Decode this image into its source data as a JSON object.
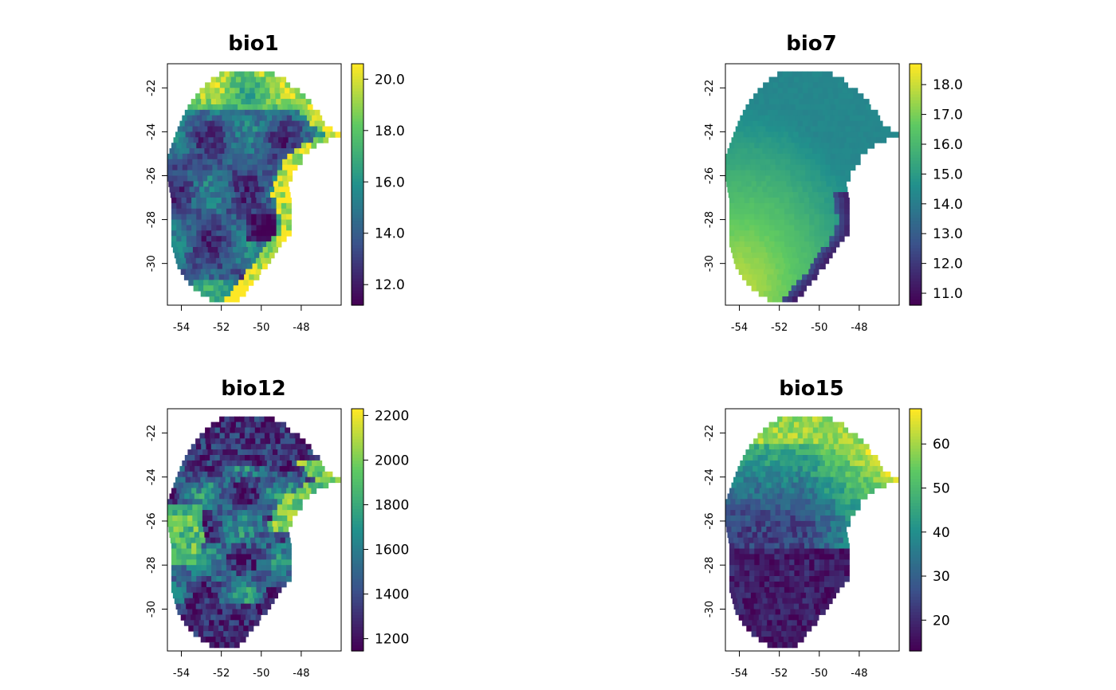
{
  "chart_data": [
    {
      "type": "heatmap",
      "title": "bio1",
      "x_ticks": [
        -54,
        -52,
        -50,
        -48
      ],
      "y_ticks": [
        -22,
        -24,
        -26,
        -28,
        -30
      ],
      "xlim": [
        -54.7,
        -46.0
      ],
      "ylim": [
        -31.9,
        -20.9
      ],
      "legend": {
        "min": 11.2,
        "max": 20.6,
        "ticks": [
          12.0,
          14.0,
          16.0,
          18.0,
          20.0
        ],
        "labels": [
          "12.0",
          "14.0",
          "16.0",
          "18.0",
          "20.0"
        ]
      },
      "colormap": [
        "#440154",
        "#3b528b",
        "#21918c",
        "#5ec962",
        "#fde725"
      ],
      "pattern": "temperature"
    },
    {
      "type": "heatmap",
      "title": "bio7",
      "x_ticks": [
        -54,
        -52,
        -50,
        -48
      ],
      "y_ticks": [
        -22,
        -24,
        -26,
        -28,
        -30
      ],
      "xlim": [
        -54.7,
        -46.0
      ],
      "ylim": [
        -31.9,
        -20.9
      ],
      "legend": {
        "min": 10.6,
        "max": 18.7,
        "ticks": [
          11.0,
          12.0,
          13.0,
          14.0,
          15.0,
          16.0,
          17.0,
          18.0
        ],
        "labels": [
          "11.0",
          "12.0",
          "13.0",
          "14.0",
          "15.0",
          "16.0",
          "17.0",
          "18.0"
        ]
      },
      "colormap": [
        "#440154",
        "#3b528b",
        "#21918c",
        "#5ec962",
        "#fde725"
      ],
      "pattern": "range"
    },
    {
      "type": "heatmap",
      "title": "bio12",
      "x_ticks": [
        -54,
        -52,
        -50,
        -48
      ],
      "y_ticks": [
        -22,
        -24,
        -26,
        -28,
        -30
      ],
      "xlim": [
        -54.7,
        -46.0
      ],
      "ylim": [
        -31.9,
        -20.9
      ],
      "legend": {
        "min": 1145,
        "max": 2230,
        "ticks": [
          1200,
          1400,
          1600,
          1800,
          2000,
          2200
        ],
        "labels": [
          "1200",
          "1400",
          "1600",
          "1800",
          "2000",
          "2200"
        ]
      },
      "colormap": [
        "#440154",
        "#3b528b",
        "#21918c",
        "#5ec962",
        "#fde725"
      ],
      "pattern": "precip"
    },
    {
      "type": "heatmap",
      "title": "bio15",
      "x_ticks": [
        -54,
        -52,
        -50,
        -48
      ],
      "y_ticks": [
        -22,
        -24,
        -26,
        -28,
        -30
      ],
      "xlim": [
        -54.7,
        -46.0
      ],
      "ylim": [
        -31.9,
        -20.9
      ],
      "legend": {
        "min": 13,
        "max": 68,
        "ticks": [
          20,
          30,
          40,
          50,
          60
        ],
        "labels": [
          "20",
          "30",
          "40",
          "50",
          "60"
        ]
      },
      "colormap": [
        "#440154",
        "#3b528b",
        "#21918c",
        "#5ec962",
        "#fde725"
      ],
      "pattern": "seasonality"
    }
  ]
}
